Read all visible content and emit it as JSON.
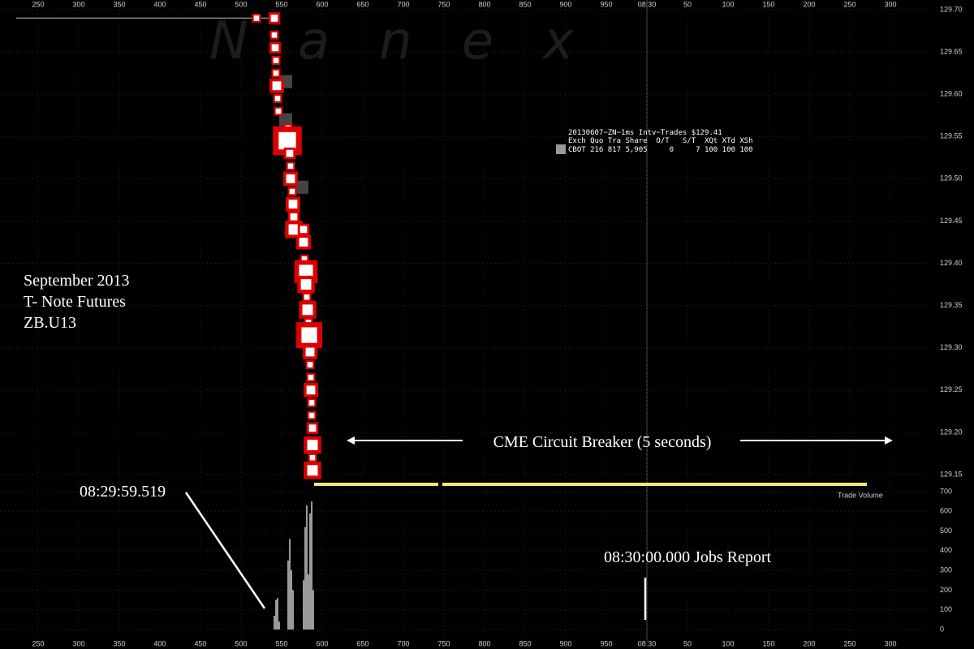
{
  "chart_data": {
    "type": "scatter",
    "watermark": "N   a   n   e   x",
    "label_lines": [
      "September 2013",
      "T- Note Futures",
      "ZB.U13"
    ],
    "annotations": [
      "CME Circuit Breaker (5 seconds)",
      "08:29:59.519",
      "08:30:00.000 Jobs Report"
    ],
    "info_box": [
      "20130607~ZN~1ms Intv~Trades $129.41",
      "Exch Quo Tra Share  O/T   S/T  XQt XTd XSh",
      "CBOT 216 817 5,905     0     7 100 100 100"
    ],
    "xlim": [
      203,
      1353
    ],
    "xticks": [
      250,
      300,
      350,
      400,
      450,
      500,
      550,
      600,
      650,
      700,
      750,
      800,
      850,
      900,
      950,
      {
        "value": 1000,
        "label": "08:30"
      },
      {
        "value": 1050,
        "label": "50"
      },
      {
        "value": 1100,
        "label": "100"
      },
      {
        "value": 1150,
        "label": "150"
      },
      {
        "value": 1200,
        "label": "200"
      },
      {
        "value": 1250,
        "label": "250"
      },
      {
        "value": 1300,
        "label": "300"
      }
    ],
    "ylim": [
      129.15,
      129.7
    ],
    "yticks": [
      129.15,
      {
        "value": 129.2,
        "label": "129.20"
      },
      129.25,
      {
        "value": 129.3,
        "label": "129.30"
      },
      129.35,
      {
        "value": 129.4,
        "label": "129.40"
      },
      129.45,
      {
        "value": 129.5,
        "label": "129.50"
      },
      129.55,
      {
        "value": 129.6,
        "label": "129.60"
      },
      129.65,
      {
        "value": 129.7,
        "label": "129.70"
      }
    ],
    "y2lim": [
      0,
      700
    ],
    "y2ticks": [
      0,
      100,
      200,
      300,
      400,
      500,
      600,
      700
    ],
    "grid": true,
    "series": [
      {
        "color": "#888888",
        "line": true,
        "x": [
          223,
          538
        ],
        "values": [
          129.69,
          129.69
        ]
      },
      {
        "color": "#444444",
        "x": [
          555,
          555,
          575
        ],
        "values": [
          129.615,
          129.57,
          129.49
        ]
      },
      {
        "color": "#dd0000",
        "x": [
          519,
          541,
          541,
          542,
          543,
          543,
          544,
          545,
          546,
          558,
          557,
          560,
          561,
          561,
          563,
          564,
          565,
          565,
          577,
          577,
          578,
          580,
          580,
          581,
          582,
          583,
          584,
          585,
          585,
          586,
          586,
          587,
          587,
          588,
          588,
          588,
          588
        ],
        "values": [
          129.69,
          129.69,
          129.67,
          129.655,
          129.64,
          129.625,
          129.61,
          129.595,
          129.58,
          129.56,
          129.545,
          129.53,
          129.515,
          129.5,
          129.485,
          129.47,
          129.455,
          129.44,
          129.44,
          129.425,
          129.405,
          129.39,
          129.375,
          129.36,
          129.345,
          129.33,
          129.315,
          129.295,
          129.28,
          129.265,
          129.25,
          129.235,
          129.22,
          129.205,
          129.185,
          129.17,
          129.155
        ],
        "sizes": [
          1,
          2,
          1,
          2,
          1,
          1,
          3,
          1,
          1,
          1,
          8,
          2,
          1,
          3,
          1,
          3,
          2,
          4,
          2,
          3,
          1,
          6,
          4,
          1,
          4,
          1,
          7,
          3,
          1,
          1,
          3,
          1,
          1,
          2,
          4,
          1,
          4
        ]
      },
      {
        "name": "Trade Volume",
        "color": "#9a9a9a",
        "axis": "y2",
        "x": [
          541,
          543,
          545,
          547,
          558,
          560,
          562,
          564,
          577,
          579,
          581,
          583,
          585,
          587,
          589
        ],
        "values": [
          70,
          150,
          160,
          40,
          350,
          460,
          300,
          200,
          250,
          520,
          630,
          280,
          590,
          650,
          200
        ]
      }
    ]
  }
}
